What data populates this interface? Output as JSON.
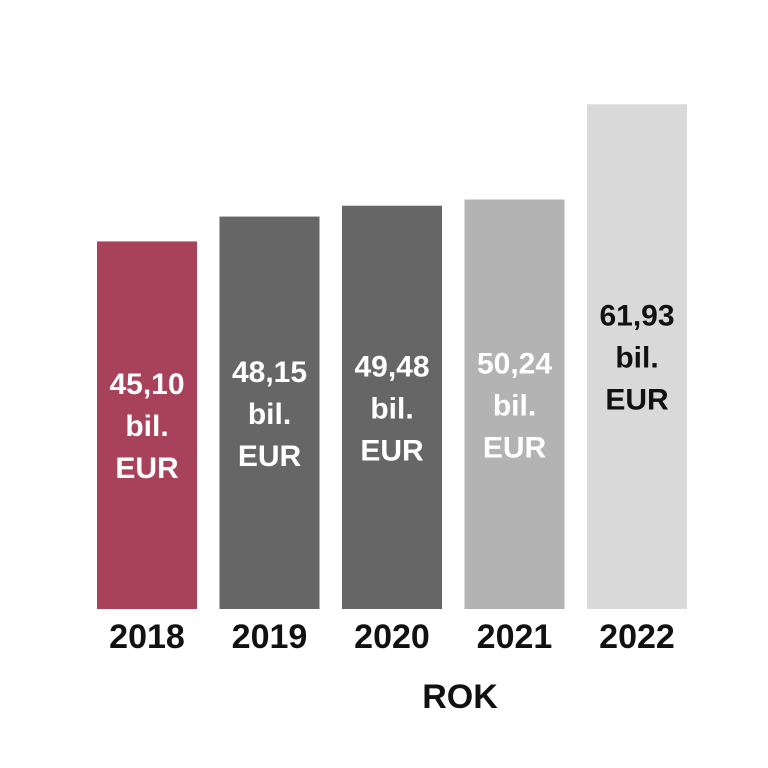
{
  "chart_data": {
    "type": "bar",
    "categories": [
      "2018",
      "2019",
      "2020",
      "2021",
      "2022"
    ],
    "values": [
      45.1,
      48.15,
      49.48,
      50.24,
      61.93
    ],
    "data_labels": [
      [
        "45,10",
        "bil.",
        "EUR"
      ],
      [
        "48,15",
        "bil.",
        "EUR"
      ],
      [
        "49,48",
        "bil.",
        "EUR"
      ],
      [
        "50,24",
        "bil.",
        "EUR"
      ],
      [
        "61,93",
        "bil.",
        "EUR"
      ]
    ],
    "bar_colors": [
      "#a8425b",
      "#666666",
      "#666666",
      "#b3b3b3",
      "#d9d9d9"
    ],
    "label_colors": [
      "#ffffff",
      "#ffffff",
      "#ffffff",
      "#ffffff",
      "#111111"
    ],
    "xlabel": "ROK",
    "ylabel": "",
    "title": "",
    "grid": false,
    "legend": "none"
  }
}
